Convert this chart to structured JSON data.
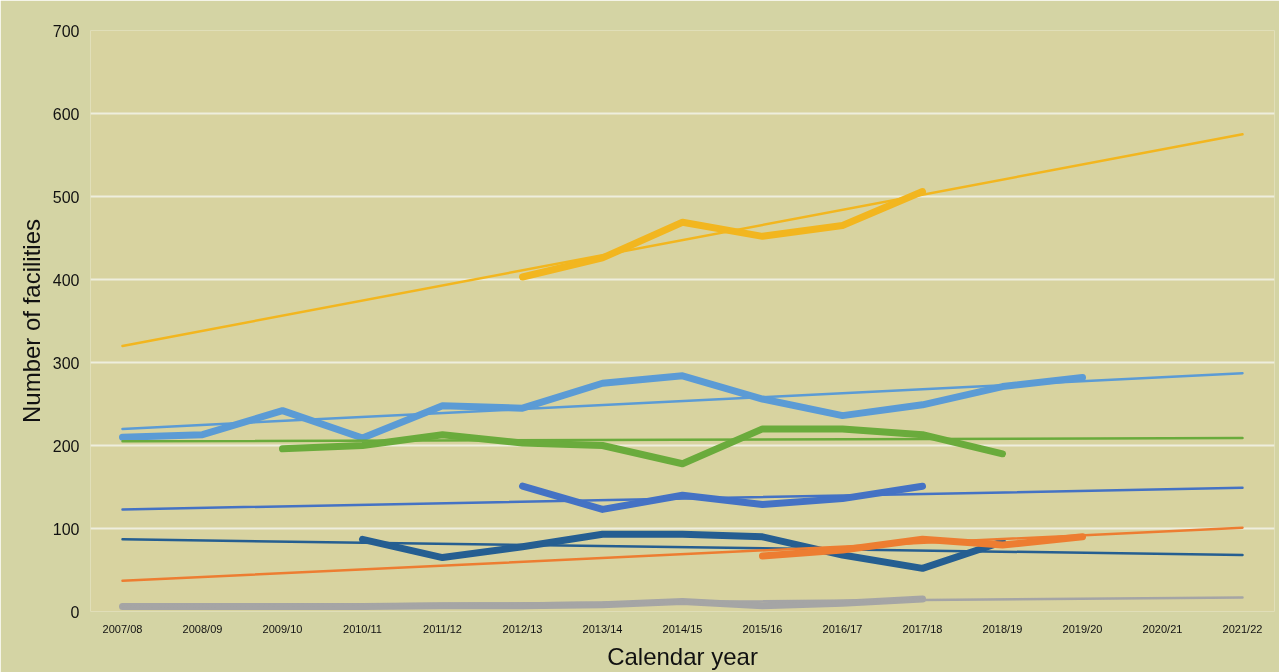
{
  "chart_data": {
    "type": "line",
    "xlabel": "Calendar year",
    "ylabel": "Number of facilities",
    "categories": [
      "2007/08",
      "2008/09",
      "2009/10",
      "2010/11",
      "2011/12",
      "2012/13",
      "2013/14",
      "2014/15",
      "2015/16",
      "2016/17",
      "2017/18",
      "2018/19",
      "2019/20",
      "2020/21",
      "2021/22"
    ],
    "ylim": [
      0,
      700
    ],
    "yticks": [
      0,
      100,
      200,
      300,
      400,
      500,
      600,
      700
    ],
    "grid": "y",
    "series": [
      {
        "color": "#f2b61f",
        "values": [
          null,
          null,
          null,
          null,
          null,
          403,
          426,
          469,
          452,
          465,
          506,
          null,
          null,
          null,
          null
        ]
      },
      {
        "color": "#f2b61f",
        "x": [
          "2007/08",
          "2021/22"
        ],
        "values": [
          320,
          575
        ]
      },
      {
        "color": "#5b9bd5",
        "values": [
          210,
          213,
          242,
          209,
          248,
          245,
          275,
          284,
          256,
          236,
          249,
          271,
          282,
          null,
          null
        ]
      },
      {
        "color": "#5b9bd5",
        "x": [
          "2007/08",
          "2021/22"
        ],
        "values": [
          220,
          287
        ]
      },
      {
        "color": "#6aab3c",
        "values": [
          null,
          null,
          196,
          200,
          213,
          203,
          200,
          178,
          220,
          220,
          213,
          190,
          null,
          null,
          null
        ]
      },
      {
        "color": "#6aab3c",
        "x": [
          "2007/08",
          "2021/22"
        ],
        "values": [
          205,
          209
        ]
      },
      {
        "color": "#4472c4",
        "values": [
          null,
          null,
          null,
          null,
          null,
          151,
          123,
          140,
          129,
          136,
          151,
          null,
          null,
          null,
          null
        ]
      },
      {
        "color": "#4472c4",
        "x": [
          "2007/08",
          "2021/22"
        ],
        "values": [
          123,
          149
        ]
      },
      {
        "color": "#255e91",
        "values": [
          null,
          null,
          null,
          87,
          65,
          78,
          93,
          93,
          90,
          68,
          52,
          84,
          null,
          null,
          null
        ]
      },
      {
        "color": "#255e91",
        "x": [
          "2007/08",
          "2021/22"
        ],
        "values": [
          87,
          68
        ]
      },
      {
        "color": "#ed7d31",
        "values": [
          null,
          null,
          null,
          null,
          null,
          null,
          null,
          null,
          67,
          74,
          87,
          80,
          90,
          null,
          null
        ]
      },
      {
        "color": "#ed7d31",
        "x": [
          "2007/08",
          "2021/22"
        ],
        "values": [
          37,
          101
        ]
      },
      {
        "color": "#a5a5a5",
        "values": [
          6,
          6,
          6,
          6,
          7,
          7,
          8,
          12,
          7,
          10,
          15,
          null,
          null,
          null,
          null
        ]
      },
      {
        "color": "#a5a5a5",
        "x": [
          "2007/08",
          "2021/22"
        ],
        "values": [
          6,
          17
        ]
      }
    ]
  }
}
